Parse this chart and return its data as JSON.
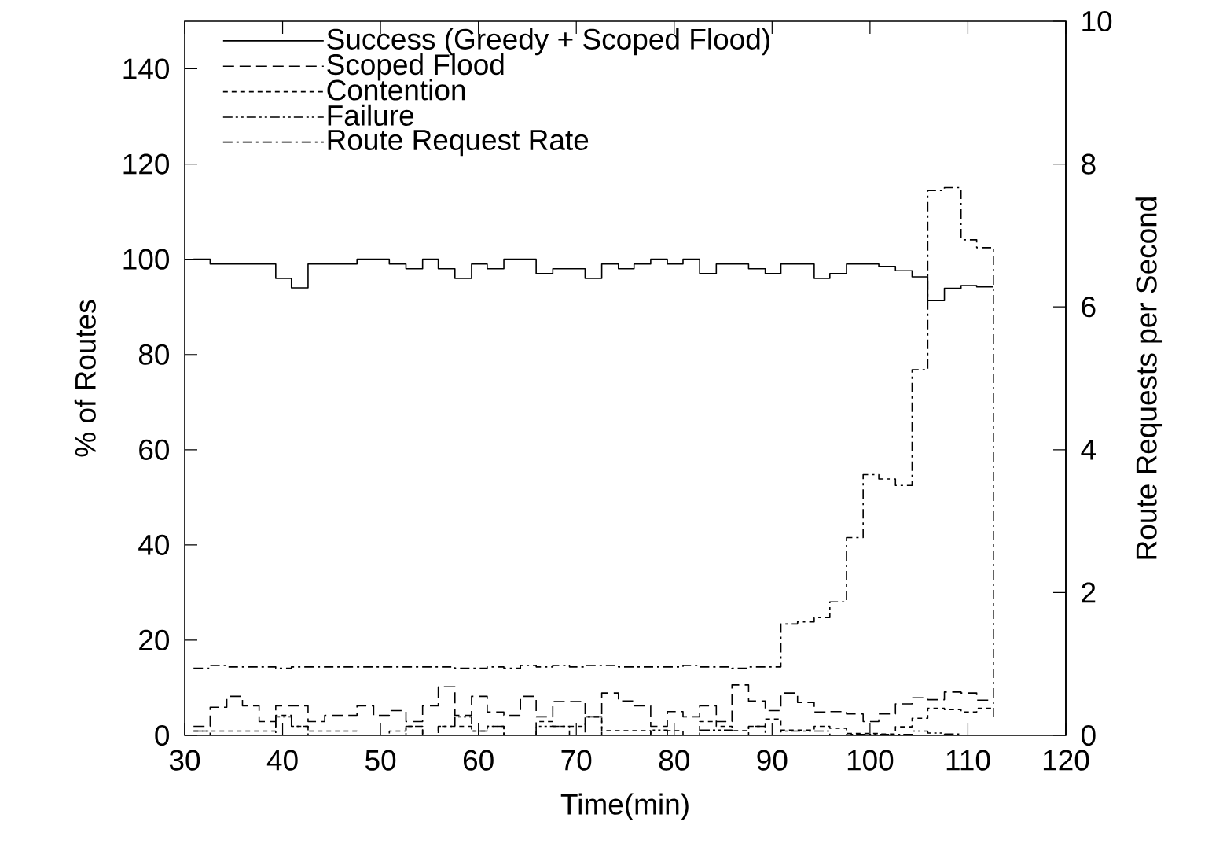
{
  "chart_data": {
    "type": "step",
    "xlabel": "Time(min)",
    "ylabel": "% of Routes",
    "y2label": "Route Requests per Second",
    "x": [
      30.9,
      32.6,
      34.3,
      35.9,
      37.6,
      39.3,
      40.9,
      42.6,
      44.3,
      45.9,
      47.6,
      49.3,
      50.9,
      52.6,
      54.3,
      55.9,
      57.6,
      59.3,
      60.9,
      62.6,
      64.3,
      65.9,
      67.6,
      69.3,
      70.9,
      72.6,
      74.3,
      75.9,
      77.6,
      79.3,
      80.9,
      82.6,
      84.3,
      85.9,
      87.6,
      89.3,
      90.9,
      92.6,
      94.3,
      95.9,
      97.6,
      99.3,
      100.9,
      102.6,
      104.3,
      105.9,
      107.6,
      109.3,
      110.9,
      112.6
    ],
    "series": [
      {
        "name": "Success (Greedy + Scoped Flood)",
        "color": "#000000",
        "line_style": "solid",
        "values": [
          100,
          99,
          99,
          99,
          99,
          96,
          94,
          99,
          99,
          99,
          100,
          100,
          99,
          98,
          100,
          98,
          96,
          99,
          98,
          100,
          100,
          97,
          98,
          98,
          96,
          99,
          98,
          99,
          100,
          99,
          100,
          97,
          99,
          99,
          98,
          97,
          99,
          99,
          96,
          97,
          99,
          99,
          98.5,
          97.6,
          96.3,
          91.3,
          93.9,
          94.5,
          94.2,
          94.2
        ]
      },
      {
        "name": "Scoped Flood",
        "color": "#000000",
        "line_style": "dashed",
        "values": [
          1.9,
          5.9,
          8.2,
          6.2,
          2.9,
          6.2,
          6.2,
          2.9,
          4.2,
          4.2,
          6.2,
          4.2,
          5.2,
          2.9,
          6.2,
          10.2,
          4.2,
          8.2,
          4.9,
          4.2,
          8.2,
          3.9,
          7.1,
          7.1,
          3.9,
          8.9,
          7.2,
          6.2,
          1.9,
          5.0,
          3.9,
          6.2,
          2.9,
          10.6,
          7.2,
          5.2,
          8.9,
          6.9,
          4.9,
          5.0,
          4.5,
          2.9,
          4.5,
          6.6,
          7.9,
          7.5,
          9.1,
          8.9,
          7.4,
          7.4
        ]
      },
      {
        "name": "Contention",
        "color": "#000000",
        "line_style": "dotted",
        "values": [
          0.9,
          0.9,
          0.9,
          0.9,
          0.9,
          4.2,
          1.9,
          0.9,
          0.9,
          0.9,
          0,
          0,
          0.9,
          1.9,
          0,
          1.9,
          1.9,
          0.9,
          1.9,
          0,
          0,
          2.9,
          1.9,
          1.9,
          3.9,
          1.0,
          1.0,
          1.0,
          0,
          1.0,
          0,
          2.9,
          1.9,
          1.0,
          1.9,
          3.4,
          1.1,
          1.1,
          1.9,
          1.5,
          0.4,
          0.4,
          0.3,
          1.8,
          3.6,
          5.7,
          5.4,
          4.9,
          5.7,
          5.7
        ]
      },
      {
        "name": "Failure",
        "color": "#000000",
        "line_style": "dashdotdot",
        "values": [
          0.9,
          0,
          0,
          0,
          0,
          3.9,
          1.9,
          0,
          0,
          0,
          0,
          0,
          0,
          1.9,
          0,
          1.9,
          3.9,
          0.9,
          1.9,
          0,
          0,
          1.9,
          1.9,
          0,
          3.9,
          0,
          0,
          0,
          1.1,
          0,
          0,
          1.1,
          1.1,
          0,
          1.9,
          0,
          0.9,
          0.9,
          0.9,
          0,
          0.2,
          0.2,
          0.2,
          0.2,
          0.9,
          0.5,
          0.3,
          0,
          0,
          0
        ]
      },
      {
        "name": "Route Request Rate",
        "color": "#000000",
        "line_style": "dashdot",
        "axis": "y2",
        "values": [
          0.94,
          0.98,
          0.96,
          0.96,
          0.96,
          0.94,
          0.96,
          0.96,
          0.96,
          0.96,
          0.96,
          0.96,
          0.96,
          0.96,
          0.96,
          0.96,
          0.94,
          0.94,
          0.96,
          0.94,
          0.98,
          0.96,
          0.98,
          0.96,
          0.98,
          0.98,
          0.96,
          0.96,
          0.96,
          0.96,
          0.98,
          0.96,
          0.96,
          0.94,
          0.96,
          0.96,
          1.56,
          1.59,
          1.65,
          1.87,
          2.77,
          3.65,
          3.59,
          3.5,
          5.12,
          7.63,
          7.67,
          6.94,
          6.83,
          0.22
        ]
      }
    ],
    "xlim": [
      30,
      120
    ],
    "xticks": [
      30,
      40,
      50,
      60,
      70,
      80,
      90,
      100,
      110,
      120
    ],
    "ylim": [
      0,
      150
    ],
    "yticks": [
      0,
      20,
      40,
      60,
      80,
      100,
      120,
      140
    ],
    "y2lim": [
      0,
      10
    ],
    "y2ticks": [
      0,
      2,
      4,
      6,
      8,
      10
    ],
    "grid": false,
    "legend": "top left"
  }
}
